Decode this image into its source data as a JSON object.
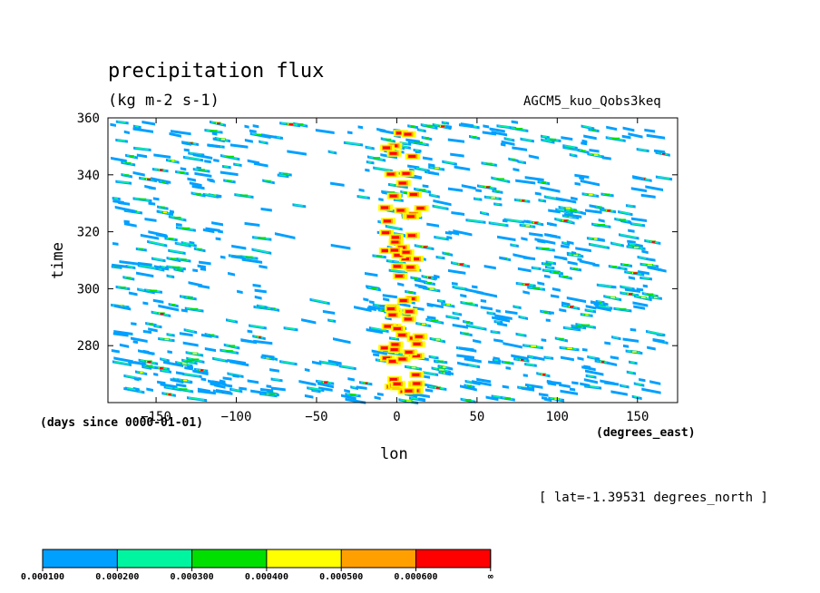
{
  "chart_data": {
    "type": "heatmap",
    "title": "precipitation flux",
    "subtitle": "(kg m-2 s-1)",
    "dataset": "AGCM5_kuo_Qobs3keq",
    "xlabel": "lon",
    "ylabel": "time",
    "x_units": "(degrees_east)",
    "y_units": "(days since 0000-01-01)",
    "annotation": "[ lat=-1.39531 degrees_north ]",
    "xlim": [
      -180,
      175
    ],
    "ylim": [
      260,
      360
    ],
    "xticks": [
      -150,
      -100,
      -50,
      0,
      50,
      100,
      150
    ],
    "yticks": [
      280,
      300,
      320,
      340,
      360
    ],
    "levels": [
      "0.000100",
      "0.000200",
      "0.000300",
      "0.000400",
      "0.000500",
      "0.000600",
      "∞"
    ],
    "colors": [
      "#00a0ff",
      "#00f5a0",
      "#00e000",
      "#ffff00",
      "#ffa000",
      "#ff0000"
    ]
  }
}
